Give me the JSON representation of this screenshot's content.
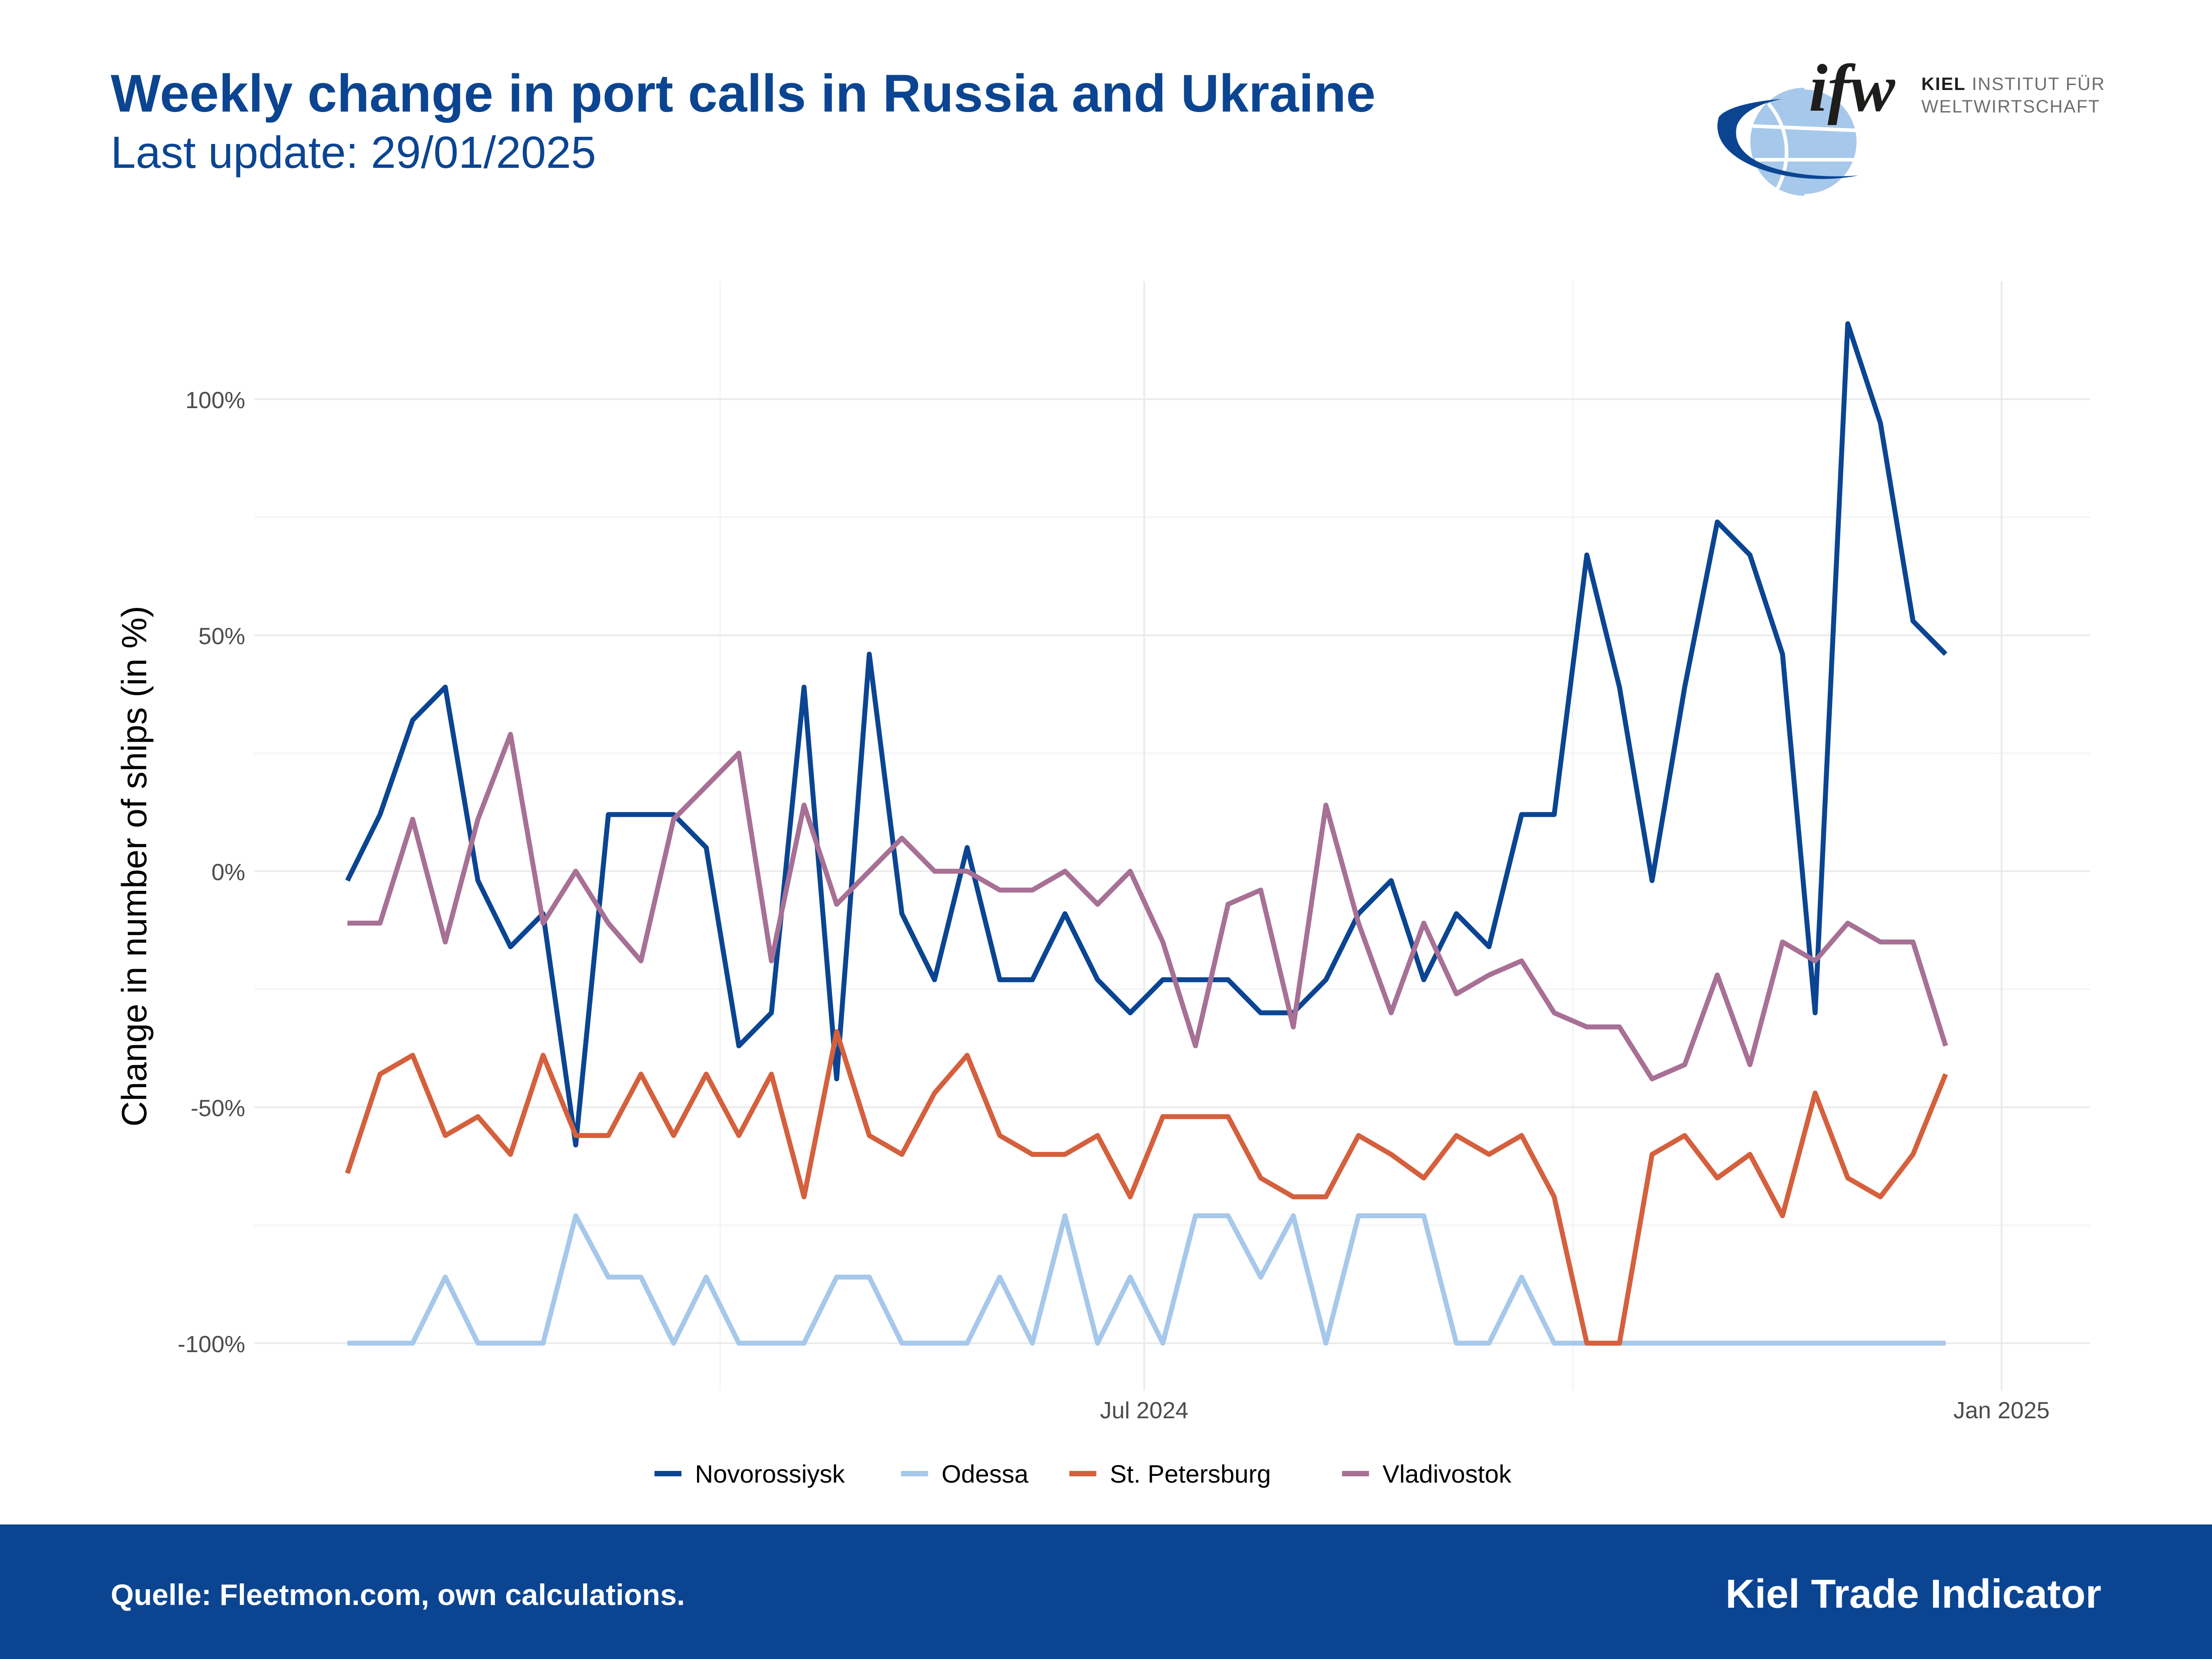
{
  "header": {
    "title": "Weekly change in port calls in Russia and Ukraine",
    "subtitle": "Last update: 29/01/2025"
  },
  "logo": {
    "mark": "ifw",
    "institute_bold": "KIEL",
    "institute_rest": "INSTITUT FÜR",
    "institute_line2": "WELTWIRTSCHAFT"
  },
  "footer": {
    "source": "Quelle: Fleetmon.com, own calculations.",
    "brand": "Kiel Trade Indicator"
  },
  "colors": {
    "brand_blue": "#0b4592",
    "novorossiysk": "#0b4592",
    "odessa": "#a6c8ea",
    "st_petersburg": "#d4603d",
    "vladivostok": "#a77095"
  },
  "chart_data": {
    "type": "line",
    "ylabel": "Change in number of ships (in %)",
    "xlabel": "",
    "ylim": [
      -110,
      125
    ],
    "y_ticks": [
      -100,
      -50,
      0,
      50,
      100
    ],
    "y_tick_labels": [
      "-100%",
      "-50%",
      "0%",
      "50%",
      "100%"
    ],
    "x_ticks": [
      {
        "date": "2024-07-01",
        "label": "Jul 2024"
      },
      {
        "date": "2025-01-01",
        "label": "Jan 2025"
      }
    ],
    "x_minor_gridlines": [
      "2024-04-01",
      "2024-10-01"
    ],
    "xlim": [
      "2023-12-23",
      "2025-01-20"
    ],
    "x_start": "2024-01-12",
    "x_step_days": 7,
    "grid": true,
    "legend_position": "bottom",
    "series": [
      {
        "name": "Novorossiysk",
        "color": "#0b4592",
        "values": [
          -2,
          12,
          32,
          39,
          -2,
          -16,
          -9,
          -58,
          12,
          12,
          12,
          5,
          -37,
          -30,
          39,
          -44,
          46,
          -9,
          -23,
          5,
          -23,
          -23,
          -9,
          -23,
          -30,
          -23,
          -23,
          -23,
          -30,
          -30,
          -23,
          -9,
          -2,
          -23,
          -9,
          -16,
          12,
          12,
          67,
          39,
          -2,
          39,
          74,
          67,
          46,
          -30,
          116,
          95,
          53,
          46
        ]
      },
      {
        "name": "Odessa",
        "color": "#a6c8ea",
        "values": [
          -100,
          -100,
          -100,
          -86,
          -100,
          -100,
          -100,
          -73,
          -86,
          -86,
          -100,
          -86,
          -100,
          -100,
          -100,
          -86,
          -86,
          -100,
          -100,
          -100,
          -86,
          -100,
          -73,
          -100,
          -86,
          -100,
          -73,
          -73,
          -86,
          -73,
          -100,
          -73,
          -73,
          -73,
          -100,
          -100,
          -86,
          -100,
          -100,
          -100,
          -100,
          -100,
          -100,
          -100,
          -100,
          -100,
          -100,
          -100,
          -100,
          -100
        ]
      },
      {
        "name": "St. Petersburg",
        "color": "#d4603d",
        "values": [
          -64,
          -43,
          -39,
          -56,
          -52,
          -60,
          -39,
          -56,
          -56,
          -43,
          -56,
          -43,
          -56,
          -43,
          -69,
          -34,
          -56,
          -60,
          -47,
          -39,
          -56,
          -60,
          -60,
          -56,
          -69,
          -52,
          -52,
          -52,
          -65,
          -69,
          -69,
          -56,
          -60,
          -65,
          -56,
          -60,
          -56,
          -69,
          -100,
          -100,
          -60,
          -56,
          -65,
          -60,
          -73,
          -47,
          -65,
          -69,
          -60,
          -43
        ]
      },
      {
        "name": "Vladivostok",
        "color": "#a77095",
        "values": [
          -11,
          -11,
          11,
          -15,
          11,
          29,
          -11,
          0,
          -11,
          -19,
          11,
          18,
          25,
          -19,
          14,
          -7,
          0,
          7,
          0,
          0,
          -4,
          -4,
          0,
          -7,
          0,
          -15,
          -37,
          -7,
          -4,
          -33,
          14,
          -11,
          -30,
          -11,
          -26,
          -22,
          -19,
          -30,
          -33,
          -33,
          -44,
          -41,
          -22,
          -41,
          -15,
          -19,
          -11,
          -15,
          -15,
          -37
        ]
      }
    ]
  }
}
